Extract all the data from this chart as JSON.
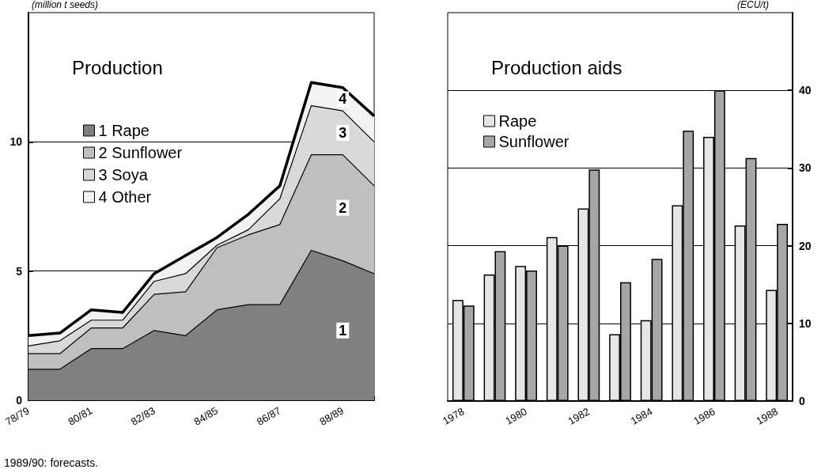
{
  "chart_data": [
    {
      "type": "area",
      "title": "Production",
      "ylabel": "(million t seeds)",
      "stacked": true,
      "categories": [
        "78/79",
        null,
        "80/81",
        null,
        "82/83",
        null,
        "84/85",
        null,
        "86/87",
        null,
        "88/89",
        null
      ],
      "series": [
        {
          "name": "1 Rape",
          "color": "#808080",
          "values": [
            1.2,
            1.2,
            2.0,
            2.0,
            2.7,
            2.5,
            3.5,
            3.7,
            3.7,
            5.8,
            5.4,
            4.9
          ]
        },
        {
          "name": "2 Sunflower",
          "color": "#bfbfbf",
          "values": [
            0.6,
            0.6,
            0.8,
            0.8,
            1.4,
            1.7,
            2.4,
            2.7,
            3.1,
            3.7,
            4.1,
            3.4
          ]
        },
        {
          "name": "3 Soya",
          "color": "#d9d9d9",
          "values": [
            0.3,
            0.5,
            0.3,
            0.3,
            0.5,
            0.7,
            0.1,
            0.2,
            1.0,
            1.9,
            1.7,
            1.7
          ]
        },
        {
          "name": "4 Other",
          "color": "#f2f2f2",
          "values": [
            0.4,
            0.3,
            0.4,
            0.3,
            0.3,
            0.7,
            0.3,
            0.6,
            0.5,
            0.9,
            0.9,
            1.0
          ]
        }
      ],
      "ylim": [
        0,
        15
      ],
      "yticks": [
        0,
        5,
        10
      ],
      "grid": "y",
      "legend": "top left",
      "annotations": [
        "1",
        "2",
        "3",
        "4",
        "1989/90: forecasts."
      ]
    },
    {
      "type": "bar",
      "title": "Production aids",
      "y2label": "(ECU/t)",
      "categories": [
        "1978",
        null,
        "1980",
        null,
        "1982",
        null,
        "1984",
        null,
        "1986",
        null,
        "1988"
      ],
      "series": [
        {
          "name": "Rape",
          "color": "#e6e6e6",
          "axis": "y2",
          "values": [
            13.0,
            16.3,
            17.4,
            21.1,
            24.8,
            8.6,
            10.4,
            25.2,
            34.0,
            22.6,
            14.3
          ]
        },
        {
          "name": "Sunflower",
          "color": "#a6a6a6",
          "axis": "y2",
          "values": [
            12.3,
            19.3,
            16.8,
            20.0,
            29.8,
            15.3,
            18.3,
            34.8,
            40.0,
            31.3,
            22.8
          ]
        }
      ],
      "y2lim": [
        0,
        50
      ],
      "y2ticks": [
        0,
        10,
        20,
        30,
        40
      ],
      "grid": "y",
      "legend": "top left"
    }
  ]
}
